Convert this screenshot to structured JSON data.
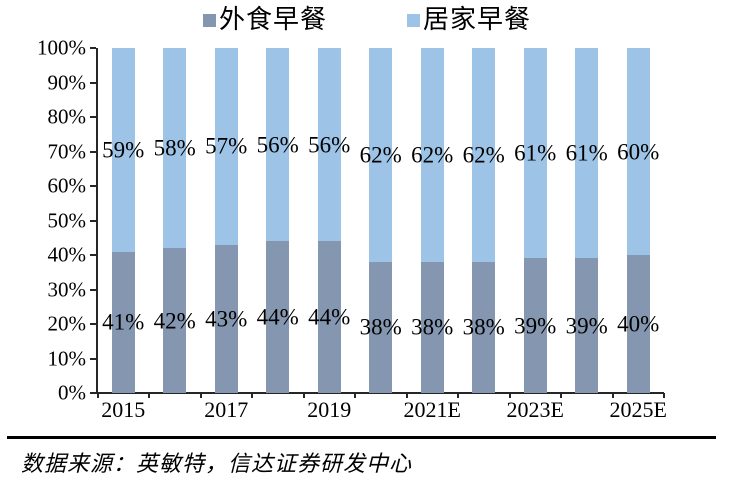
{
  "legend": {
    "items": [
      {
        "label": "外食早餐",
        "color": "#8496B0"
      },
      {
        "label": "居家早餐",
        "color": "#9DC3E6"
      }
    ]
  },
  "chart_data": {
    "type": "bar",
    "subtype": "stacked-100-percent",
    "categories": [
      "2015",
      "2016",
      "2017",
      "2018",
      "2019",
      "2020",
      "2021E",
      "2022E",
      "2023E",
      "2024E",
      "2025E"
    ],
    "x_axis_visible_labels": [
      "2015",
      "2017",
      "2019",
      "2021E",
      "2023E",
      "2025E"
    ],
    "series": [
      {
        "name": "外食早餐",
        "color": "#8496B0",
        "values": [
          41,
          42,
          43,
          44,
          44,
          38,
          38,
          38,
          39,
          39,
          40
        ]
      },
      {
        "name": "居家早餐",
        "color": "#9DC3E6",
        "values": [
          59,
          58,
          57,
          56,
          56,
          62,
          62,
          62,
          61,
          61,
          60
        ]
      }
    ],
    "value_suffix": "%",
    "ylim": [
      0,
      100
    ],
    "ytick_step": 10,
    "ytick_labels": [
      "0%",
      "10%",
      "20%",
      "30%",
      "40%",
      "50%",
      "60%",
      "70%",
      "80%",
      "90%",
      "100%"
    ],
    "legend_position": "top-center",
    "grid": false,
    "title": "",
    "xlabel": "",
    "ylabel": ""
  },
  "footer": {
    "source_text": "数据来源：英敏特，信达证券研发中心"
  }
}
